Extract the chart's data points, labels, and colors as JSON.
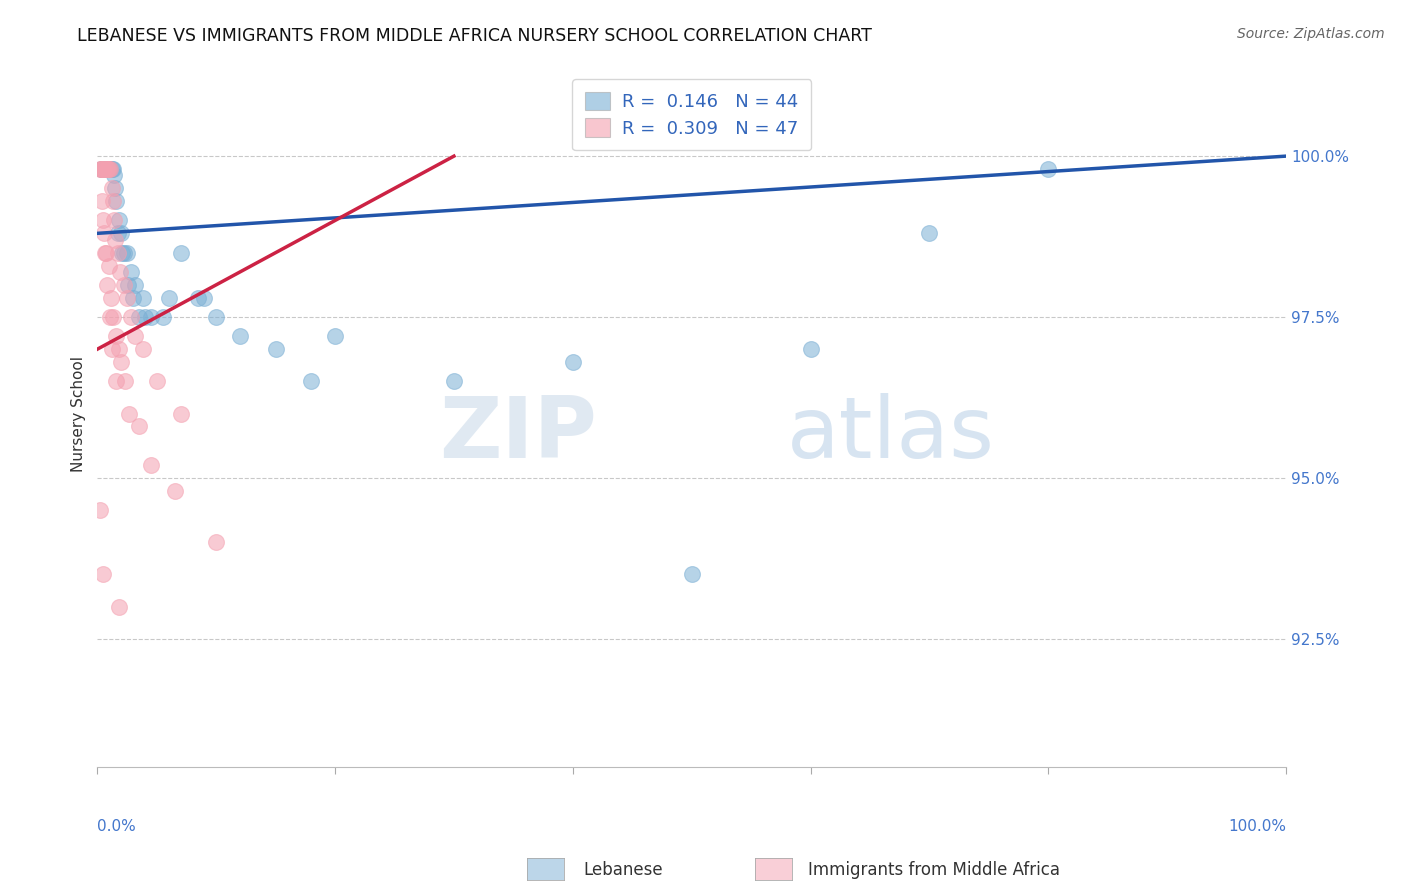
{
  "title": "LEBANESE VS IMMIGRANTS FROM MIDDLE AFRICA NURSERY SCHOOL CORRELATION CHART",
  "source": "Source: ZipAtlas.com",
  "ylabel": "Nursery School",
  "ylim": [
    90.5,
    101.5
  ],
  "xlim": [
    0.0,
    100.0
  ],
  "yticks": [
    92.5,
    95.0,
    97.5,
    100.0
  ],
  "ytick_labels": [
    "92.5%",
    "95.0%",
    "97.5%",
    "100.0%"
  ],
  "legend_r1": "R =  0.146",
  "legend_n1": "N = 44",
  "legend_r2": "R =  0.309",
  "legend_n2": "N = 47",
  "blue_color": "#7bafd4",
  "pink_color": "#f4a0b0",
  "trend_blue": "#2255aa",
  "trend_pink": "#cc2244",
  "watermark_zip": "ZIP",
  "watermark_atlas": "atlas",
  "blue_x": [
    0.3,
    0.4,
    0.5,
    0.6,
    0.7,
    0.8,
    0.9,
    1.0,
    1.1,
    1.2,
    1.3,
    1.4,
    1.5,
    1.6,
    1.8,
    2.0,
    2.2,
    2.5,
    2.8,
    3.2,
    3.8,
    4.5,
    5.5,
    7.0,
    8.5,
    10.0,
    12.0,
    15.0,
    20.0,
    30.0,
    40.0,
    60.0,
    80.0,
    1.7,
    2.1,
    2.6,
    3.0,
    3.5,
    4.0,
    6.0,
    9.0,
    18.0,
    50.0,
    70.0
  ],
  "blue_y": [
    99.8,
    99.8,
    99.8,
    99.8,
    99.8,
    99.8,
    99.8,
    99.8,
    99.8,
    99.8,
    99.8,
    99.7,
    99.5,
    99.3,
    99.0,
    98.8,
    98.5,
    98.5,
    98.2,
    98.0,
    97.8,
    97.5,
    97.5,
    98.5,
    97.8,
    97.5,
    97.2,
    97.0,
    97.2,
    96.5,
    96.8,
    97.0,
    99.8,
    98.8,
    98.5,
    98.0,
    97.8,
    97.5,
    97.5,
    97.8,
    97.8,
    96.5,
    93.5,
    98.8
  ],
  "pink_x": [
    0.2,
    0.3,
    0.4,
    0.5,
    0.6,
    0.7,
    0.8,
    0.9,
    1.0,
    1.1,
    1.2,
    1.3,
    1.4,
    1.5,
    1.7,
    1.9,
    2.2,
    2.5,
    2.8,
    3.2,
    3.8,
    5.0,
    7.0,
    0.35,
    0.55,
    0.75,
    0.95,
    1.15,
    1.35,
    1.6,
    1.8,
    2.0,
    2.3,
    2.7,
    3.5,
    4.5,
    0.45,
    0.65,
    0.85,
    1.05,
    1.25,
    1.55,
    6.5,
    10.0,
    0.25,
    0.5,
    1.8
  ],
  "pink_y": [
    99.8,
    99.8,
    99.8,
    99.8,
    99.8,
    99.8,
    99.8,
    99.8,
    99.8,
    99.8,
    99.5,
    99.3,
    99.0,
    98.7,
    98.5,
    98.2,
    98.0,
    97.8,
    97.5,
    97.2,
    97.0,
    96.5,
    96.0,
    99.3,
    98.8,
    98.5,
    98.3,
    97.8,
    97.5,
    97.2,
    97.0,
    96.8,
    96.5,
    96.0,
    95.8,
    95.2,
    99.0,
    98.5,
    98.0,
    97.5,
    97.0,
    96.5,
    94.8,
    94.0,
    94.5,
    93.5,
    93.0
  ],
  "blue_trendline_x": [
    0,
    100
  ],
  "blue_trendline_y": [
    98.8,
    100.0
  ],
  "pink_trendline_x": [
    0,
    30
  ],
  "pink_trendline_y": [
    97.0,
    100.0
  ]
}
